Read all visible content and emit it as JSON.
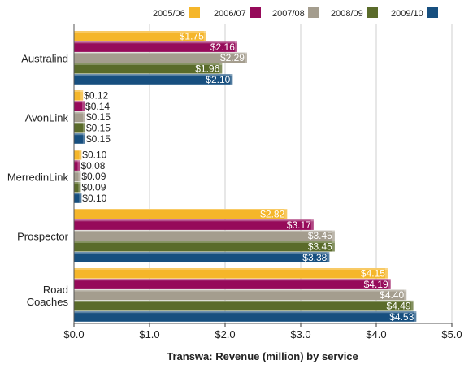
{
  "chart_data": {
    "type": "bar",
    "orientation": "horizontal",
    "title": "",
    "xlabel": "Transwa: Revenue (million) by service",
    "ylabel": "",
    "xlim": [
      0,
      5
    ],
    "x_ticks": [
      "$0.0",
      "$1.0",
      "$2.0",
      "$3.0",
      "$4.0",
      "$5.0"
    ],
    "categories": [
      [
        "Australind"
      ],
      [
        "AvonLink"
      ],
      [
        "MerredinLink"
      ],
      [
        "Prospector"
      ],
      [
        "Road",
        "Coaches"
      ]
    ],
    "legend_position": "top-right",
    "grid": true,
    "series": [
      {
        "name": "2005/06",
        "color": "#F5B62A",
        "values": [
          1.75,
          0.12,
          0.1,
          2.82,
          4.15
        ],
        "labels": [
          "$1.75",
          "$0.12",
          "$0.10",
          "$2.82",
          "$4.15"
        ]
      },
      {
        "name": "2006/07",
        "color": "#960A5A",
        "values": [
          2.16,
          0.14,
          0.08,
          3.17,
          4.19
        ],
        "labels": [
          "$2.16",
          "$0.14",
          "$0.08",
          "$3.17",
          "$4.19"
        ]
      },
      {
        "name": "2007/08",
        "color": "#A49D8E",
        "values": [
          2.29,
          0.15,
          0.09,
          3.45,
          4.4
        ],
        "labels": [
          "$2.29",
          "$0.15",
          "$0.09",
          "$3.45",
          "$4.40"
        ]
      },
      {
        "name": "2008/09",
        "color": "#5A6B2A",
        "values": [
          1.96,
          0.15,
          0.09,
          3.45,
          4.49
        ],
        "labels": [
          "$1.96",
          "$0.15",
          "$0.09",
          "$3.45",
          "$4.49"
        ]
      },
      {
        "name": "2009/10",
        "color": "#174F7F",
        "values": [
          2.1,
          0.15,
          0.1,
          3.38,
          4.53
        ],
        "labels": [
          "$2.10",
          "$0.15",
          "$0.10",
          "$3.38",
          "$4.53"
        ]
      }
    ]
  }
}
